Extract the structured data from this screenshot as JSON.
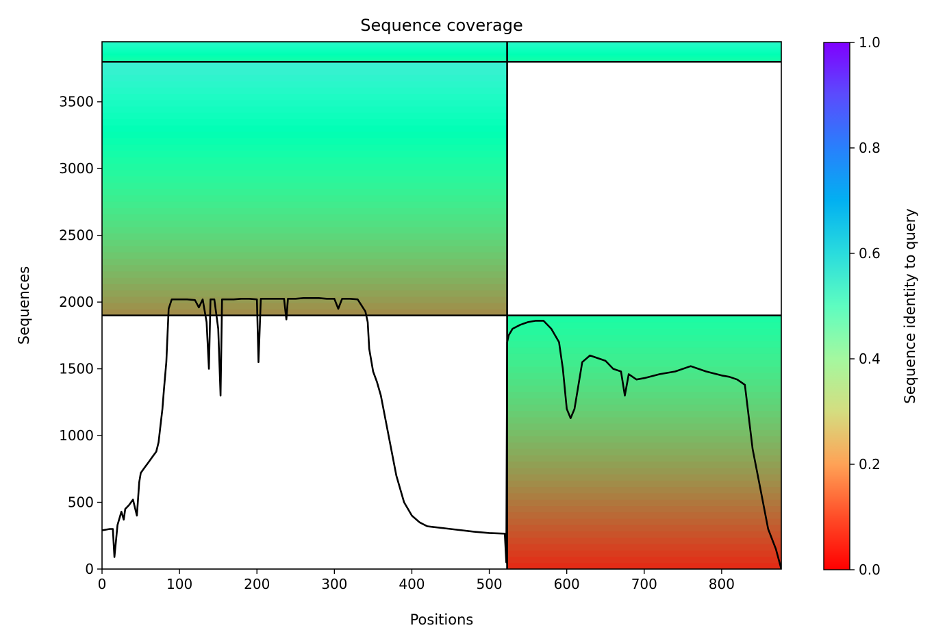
{
  "chart_data": {
    "type": "heatmap",
    "title": "Sequence coverage",
    "xlabel": "Positions",
    "ylabel": "Sequences",
    "colorbar_label": "Sequence identity to query",
    "colormap": "rainbow_r",
    "xlim": [
      0,
      877
    ],
    "ylim": [
      0,
      3950
    ],
    "x_ticks": [
      0,
      100,
      200,
      300,
      400,
      500,
      600,
      700,
      800
    ],
    "y_ticks": [
      0,
      500,
      1000,
      1500,
      2000,
      2500,
      3000,
      3500
    ],
    "colorbar_range": [
      0,
      1
    ],
    "colorbar_ticks": [
      0.0,
      0.2,
      0.4,
      0.6,
      0.8,
      1.0
    ],
    "chain_boundary_x": 523,
    "block_boundaries_y": [
      1900,
      3800
    ],
    "blocks": [
      {
        "x": [
          523,
          877
        ],
        "y": [
          0,
          1900
        ],
        "identity_bottom": 0.05,
        "identity_top": 0.45
      },
      {
        "x": [
          0,
          523
        ],
        "y": [
          1900,
          3800
        ],
        "identity_bottom": 0.18,
        "identity_top": 0.62
      },
      {
        "x": [
          0,
          877
        ],
        "y": [
          3800,
          3950
        ],
        "identity_bottom": 0.45,
        "identity_top": 0.58
      }
    ],
    "coverage_line": {
      "x": [
        0,
        10,
        14,
        16,
        20,
        25,
        28,
        30,
        35,
        40,
        45,
        48,
        50,
        55,
        60,
        65,
        70,
        73,
        75,
        78,
        80,
        83,
        86,
        90,
        100,
        110,
        120,
        125,
        130,
        135,
        138,
        140,
        145,
        150,
        153,
        155,
        160,
        170,
        180,
        190,
        200,
        202,
        205,
        210,
        220,
        235,
        238,
        240,
        250,
        260,
        270,
        280,
        290,
        300,
        305,
        310,
        320,
        330,
        340,
        343,
        345,
        350,
        355,
        360,
        370,
        380,
        390,
        400,
        410,
        420,
        450,
        480,
        500,
        520,
        522,
        523,
        525,
        530,
        540,
        550,
        560,
        570,
        580,
        590,
        595,
        600,
        605,
        610,
        620,
        630,
        640,
        650,
        660,
        670,
        675,
        680,
        690,
        700,
        720,
        740,
        760,
        780,
        800,
        810,
        820,
        825,
        830,
        840,
        850,
        860,
        870,
        877
      ],
      "y": [
        290,
        300,
        300,
        90,
        330,
        430,
        370,
        450,
        480,
        520,
        400,
        650,
        720,
        760,
        800,
        840,
        880,
        950,
        1050,
        1200,
        1350,
        1550,
        1950,
        2020,
        2020,
        2020,
        2015,
        1960,
        2020,
        1850,
        1500,
        2020,
        2020,
        1800,
        1300,
        2020,
        2020,
        2020,
        2025,
        2025,
        2020,
        1550,
        2025,
        2025,
        2025,
        2025,
        1870,
        2025,
        2025,
        2030,
        2030,
        2030,
        2025,
        2025,
        1950,
        2025,
        2025,
        2020,
        1930,
        1850,
        1650,
        1480,
        1400,
        1300,
        1000,
        700,
        500,
        400,
        350,
        320,
        300,
        280,
        270,
        265,
        50,
        1700,
        1750,
        1800,
        1830,
        1850,
        1860,
        1860,
        1800,
        1700,
        1500,
        1200,
        1130,
        1200,
        1550,
        1600,
        1580,
        1560,
        1500,
        1480,
        1300,
        1460,
        1420,
        1430,
        1460,
        1480,
        1520,
        1480,
        1450,
        1440,
        1420,
        1400,
        1380,
        900,
        600,
        300,
        150,
        0
      ]
    }
  }
}
